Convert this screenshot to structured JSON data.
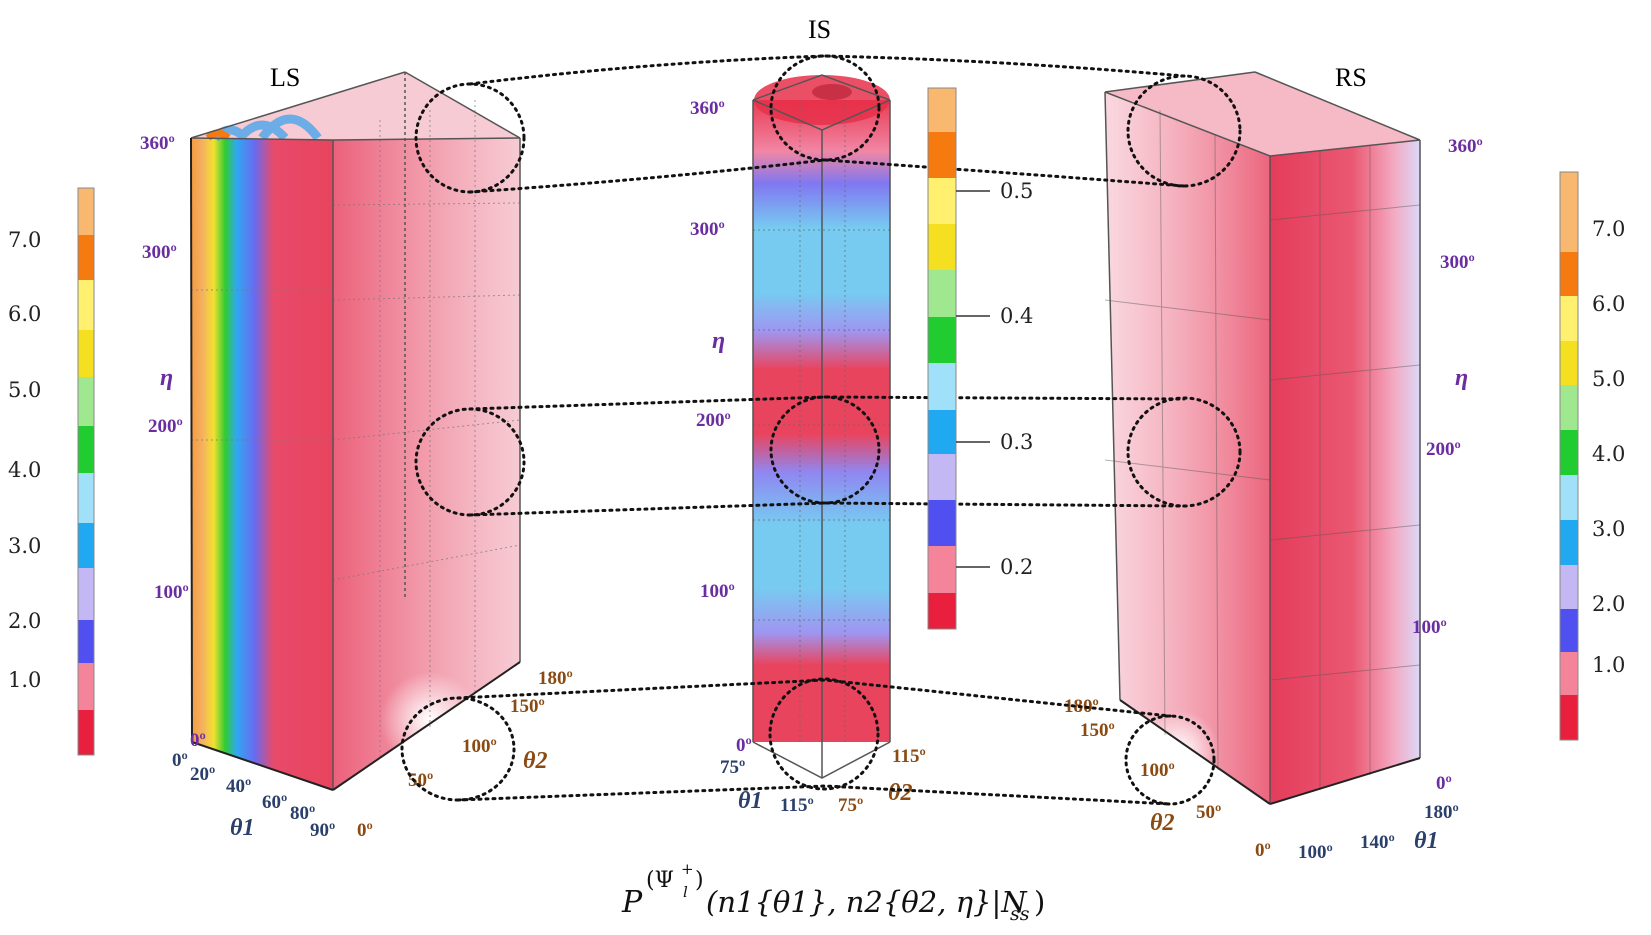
{
  "chart_data": {
    "type": "heatmap",
    "title": "P^(Ψ_l^+)(n1{θ1}, n2{θ2, η}|N_ss)",
    "formula": {
      "P": "P",
      "psi": "(Ψ",
      "sub_l": "l",
      "sup_plus": "+",
      "close": ")",
      "args": "(n1{θ1}, n2{θ2, η}|N",
      "ss": "ss",
      "end": ")"
    },
    "panels": [
      {
        "id": "LS",
        "label": "LS",
        "eta_axis": {
          "label": "η",
          "ticks": [
            "0º",
            "100º",
            "200º",
            "300º",
            "360º"
          ],
          "range": [
            0,
            360
          ]
        },
        "theta1_axis": {
          "label": "θ1",
          "ticks": [
            "0º",
            "20º",
            "40º",
            "60º",
            "80º",
            "90º"
          ],
          "range": [
            0,
            90
          ]
        },
        "theta2_axis": {
          "label": "θ2",
          "ticks": [
            "0º",
            "50º",
            "100º",
            "150º",
            "180º"
          ],
          "range": [
            0,
            180
          ]
        },
        "colorbar": {
          "ticks": [
            "1.0",
            "2.0",
            "3.0",
            "4.0",
            "5.0",
            "6.0",
            "7.0"
          ],
          "range": [
            0,
            7.7
          ]
        }
      },
      {
        "id": "IS",
        "label": "IS",
        "eta_axis": {
          "label": "η",
          "ticks": [
            "0º",
            "100º",
            "200º",
            "300º",
            "360º"
          ],
          "range": [
            0,
            360
          ]
        },
        "theta1_axis": {
          "label": "θ1",
          "ticks": [
            "75º",
            "115º"
          ],
          "range": [
            75,
            115
          ]
        },
        "theta2_axis": {
          "label": "θ2",
          "ticks": [
            "115º",
            "75º"
          ],
          "range": [
            75,
            115
          ]
        },
        "colorbar": {
          "ticks": [
            "0.2",
            "0.3",
            "0.4",
            "0.5"
          ],
          "range": [
            0.15,
            0.57
          ]
        }
      },
      {
        "id": "RS",
        "label": "RS",
        "eta_axis": {
          "label": "η",
          "ticks": [
            "0º",
            "100º",
            "200º",
            "300º",
            "360º"
          ],
          "range": [
            0,
            360
          ]
        },
        "theta1_axis": {
          "label": "θ1",
          "ticks": [
            "100º",
            "140º",
            "180º"
          ],
          "range": [
            90,
            180
          ]
        },
        "theta2_axis": {
          "label": "θ2",
          "ticks": [
            "0º",
            "50º",
            "100º",
            "150º",
            "180º"
          ],
          "range": [
            0,
            180
          ]
        },
        "colorbar": {
          "ticks": [
            "1.0",
            "2.0",
            "3.0",
            "4.0",
            "5.0",
            "6.0",
            "7.0"
          ],
          "range": [
            0,
            7.7
          ]
        }
      }
    ],
    "colormap_bands": [
      "#e8203d",
      "#f47e96",
      "#5050f0",
      "#c4b8f4",
      "#20a8f0",
      "#a0e0f8",
      "#20cc30",
      "#a0e890",
      "#f4e020",
      "#fff070",
      "#f57a10",
      "#f8b870"
    ]
  }
}
